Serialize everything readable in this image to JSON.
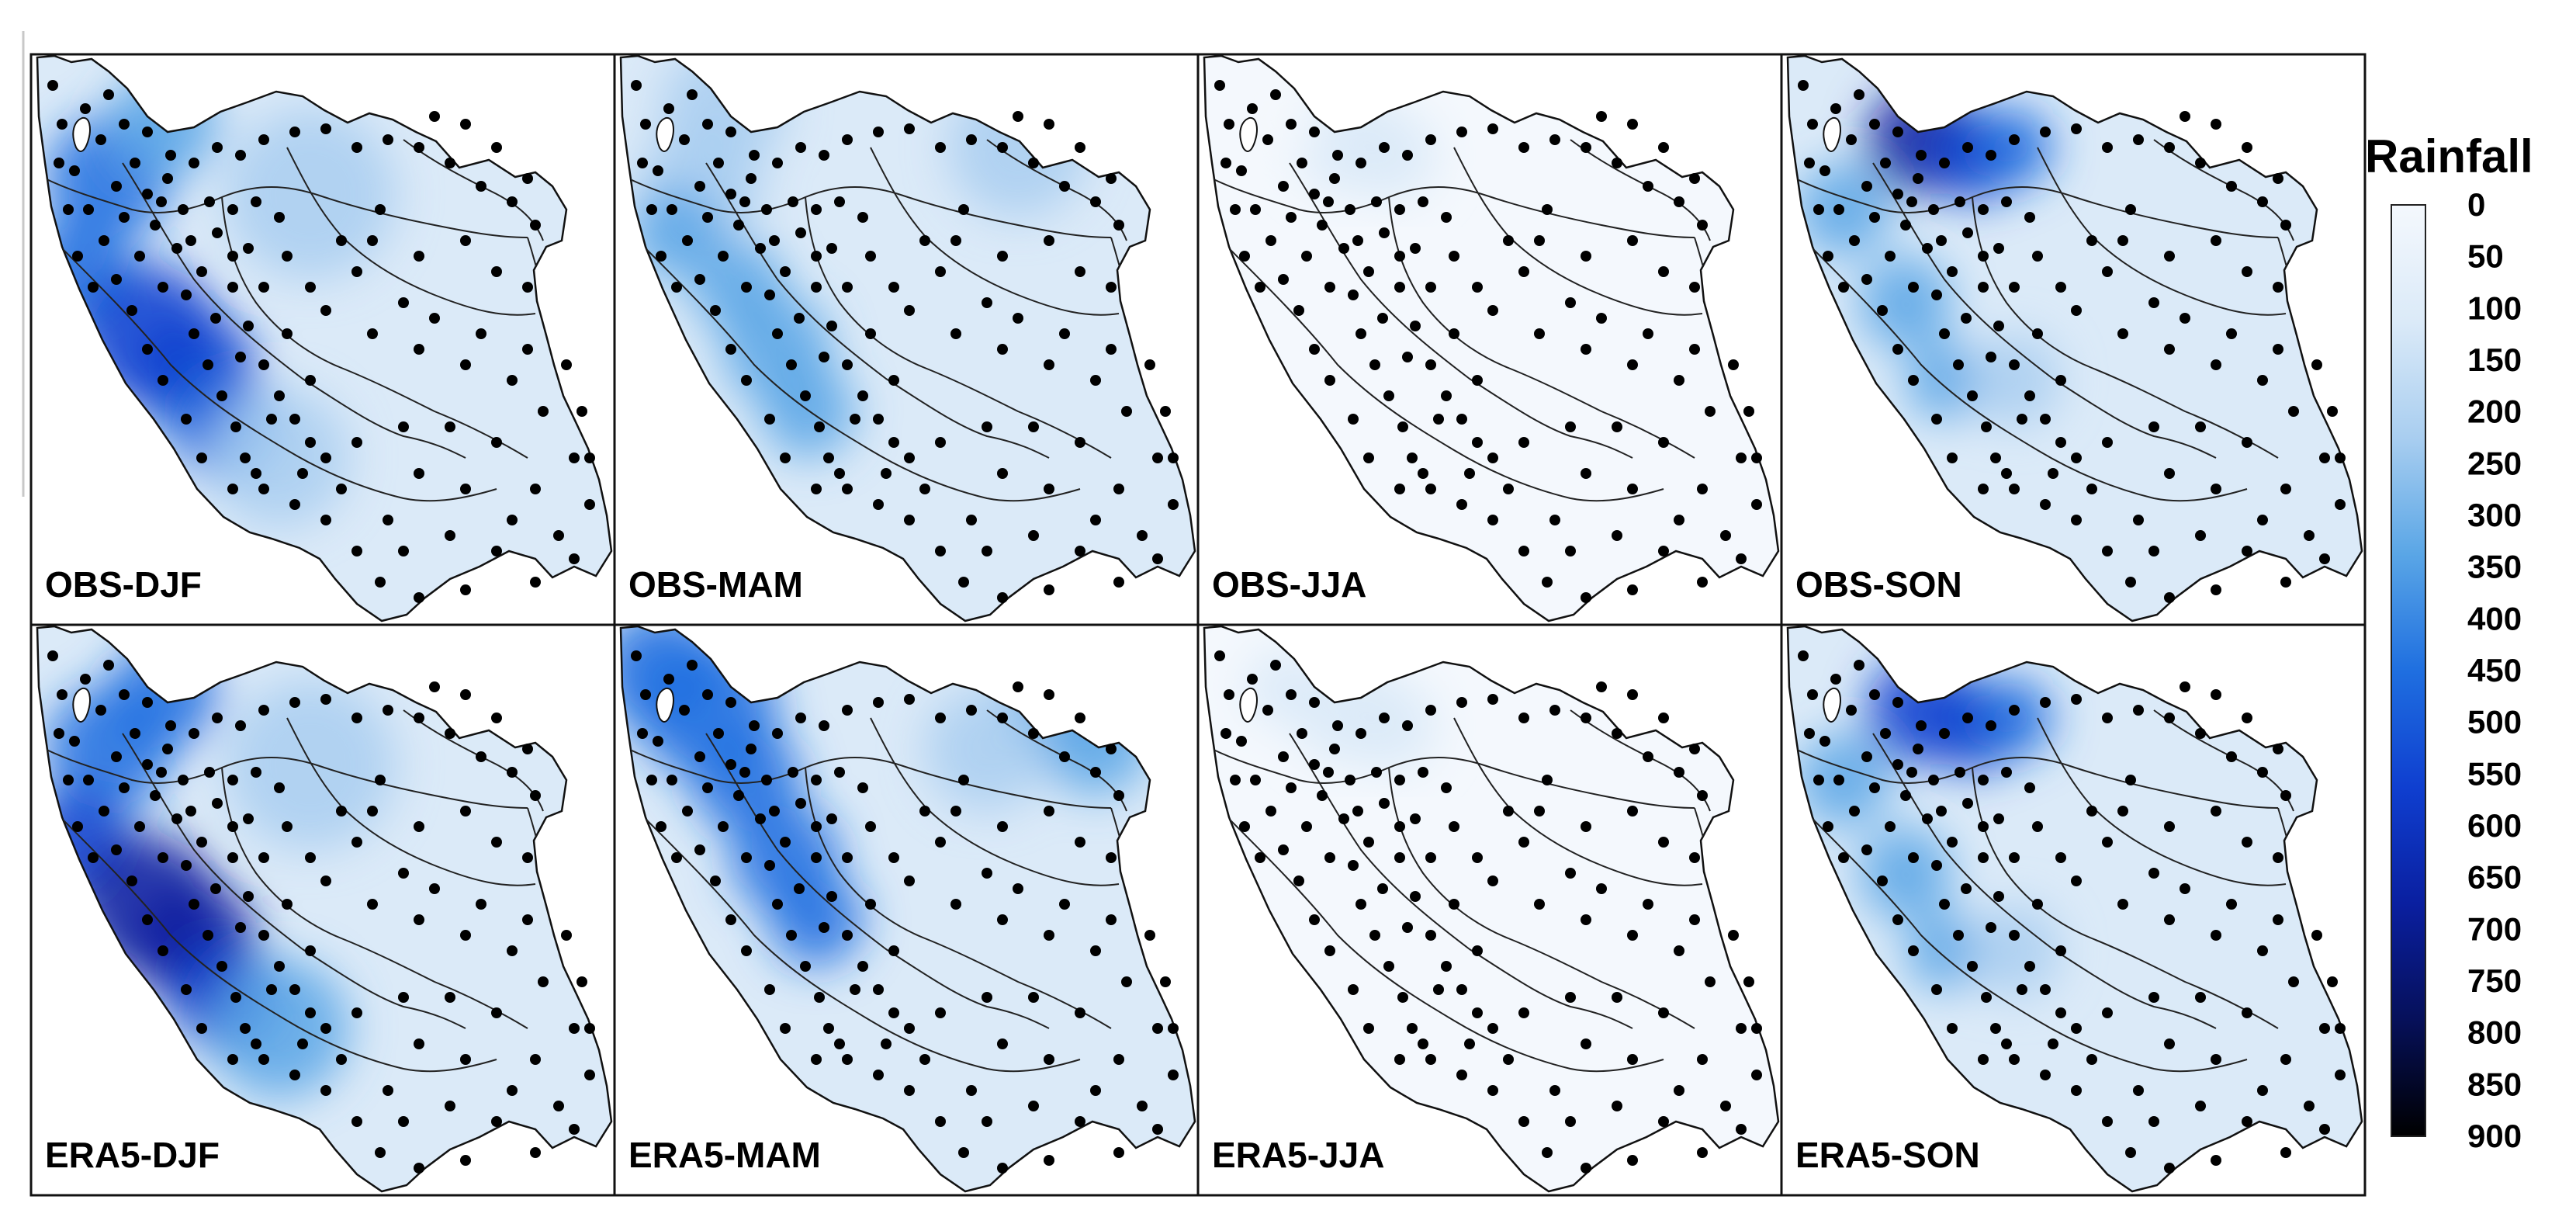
{
  "figure": {
    "panels": [
      {
        "label": "OBS-DJF",
        "source": "OBS",
        "season": "DJF",
        "pattern": "west",
        "intensity": 0.85
      },
      {
        "label": "OBS-MAM",
        "source": "OBS",
        "season": "MAM",
        "pattern": "zagros",
        "intensity": 0.65
      },
      {
        "label": "OBS-JJA",
        "source": "OBS",
        "season": "JJA",
        "pattern": "dry",
        "intensity": 0.3
      },
      {
        "label": "OBS-SON",
        "source": "OBS",
        "season": "SON",
        "pattern": "caspian",
        "intensity": 0.9
      },
      {
        "label": "ERA5-DJF",
        "source": "ERA5",
        "season": "DJF",
        "pattern": "west",
        "intensity": 1.0
      },
      {
        "label": "ERA5-MAM",
        "source": "ERA5",
        "season": "MAM",
        "pattern": "north-west",
        "intensity": 0.8
      },
      {
        "label": "ERA5-JJA",
        "source": "ERA5",
        "season": "JJA",
        "pattern": "dry",
        "intensity": 0.4
      },
      {
        "label": "ERA5-SON",
        "source": "ERA5",
        "season": "SON",
        "pattern": "caspian",
        "intensity": 0.85
      }
    ]
  },
  "colorbar": {
    "title": "Rainfall",
    "ticks": [
      "0",
      "50",
      "100",
      "150",
      "200",
      "250",
      "300",
      "350",
      "400",
      "450",
      "500",
      "550",
      "600",
      "650",
      "700",
      "750",
      "800",
      "850",
      "900"
    ],
    "min": 0,
    "max": 900,
    "colors": [
      "#f4f8fd",
      "#dbeaf8",
      "#a9cef0",
      "#5aa6e6",
      "#1f6fe0",
      "#0f3fd0",
      "#0a1fa0",
      "#06105a",
      "#000000"
    ]
  }
}
